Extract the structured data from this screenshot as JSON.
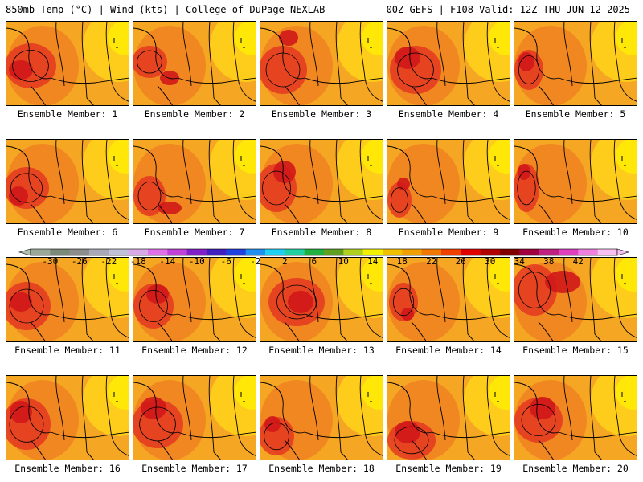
{
  "header": {
    "left": "850mb Temp (°C) | Wind (kts) | College of DuPage NEXLAB",
    "right": "00Z GEFS | F108 Valid: 12Z THU JUN 12 2025"
  },
  "panels": [
    {
      "label": "Ensemble Member: 1",
      "hot": [
        [
          30,
          55,
          32,
          28
        ],
        [
          18,
          60,
          15,
          12
        ]
      ]
    },
    {
      "label": "Ensemble Member: 2",
      "hot": [
        [
          20,
          50,
          22,
          20
        ],
        [
          45,
          70,
          12,
          9
        ]
      ]
    },
    {
      "label": "Ensemble Member: 3",
      "hot": [
        [
          28,
          60,
          30,
          30
        ],
        [
          35,
          20,
          12,
          10
        ]
      ]
    },
    {
      "label": "Ensemble Member: 4",
      "hot": [
        [
          35,
          60,
          32,
          30
        ],
        [
          25,
          45,
          16,
          14
        ]
      ]
    },
    {
      "label": "Ensemble Member: 5",
      "hot": [
        [
          18,
          60,
          18,
          25
        ],
        [
          15,
          50,
          10,
          12
        ]
      ]
    },
    {
      "label": "Ensemble Member: 6",
      "hot": [
        [
          25,
          60,
          28,
          26
        ],
        [
          15,
          70,
          12,
          12
        ]
      ]
    },
    {
      "label": "Ensemble Member: 7",
      "hot": [
        [
          20,
          70,
          20,
          25
        ],
        [
          45,
          85,
          15,
          8
        ]
      ]
    },
    {
      "label": "Ensemble Member: 8",
      "hot": [
        [
          20,
          60,
          25,
          30
        ],
        [
          30,
          40,
          14,
          14
        ]
      ]
    },
    {
      "label": "Ensemble Member: 9",
      "hot": [
        [
          15,
          75,
          15,
          22
        ],
        [
          20,
          55,
          8,
          8
        ]
      ]
    },
    {
      "label": "Ensemble Member: 10",
      "hot": [
        [
          15,
          60,
          16,
          30
        ],
        [
          12,
          40,
          8,
          10
        ]
      ]
    },
    {
      "label": "Ensemble Member: 11",
      "hot": [
        [
          25,
          60,
          30,
          30
        ],
        [
          18,
          55,
          14,
          12
        ]
      ]
    },
    {
      "label": "Ensemble Member: 12",
      "hot": [
        [
          25,
          60,
          25,
          28
        ],
        [
          30,
          45,
          14,
          12
        ]
      ]
    },
    {
      "label": "Ensemble Member: 13",
      "hot": [
        [
          45,
          55,
          35,
          30
        ],
        [
          50,
          55,
          16,
          14
        ]
      ]
    },
    {
      "label": "Ensemble Member: 14",
      "hot": [
        [
          20,
          55,
          18,
          24
        ],
        [
          25,
          70,
          8,
          8
        ]
      ]
    },
    {
      "label": "Ensemble Member: 15",
      "hot": [
        [
          25,
          40,
          28,
          32
        ],
        [
          60,
          30,
          22,
          14
        ]
      ]
    },
    {
      "label": "Ensemble Member: 16",
      "hot": [
        [
          25,
          60,
          30,
          32
        ],
        [
          18,
          45,
          14,
          14
        ]
      ]
    },
    {
      "label": "Ensemble Member: 17",
      "hot": [
        [
          30,
          60,
          32,
          30
        ],
        [
          25,
          40,
          16,
          14
        ]
      ]
    },
    {
      "label": "Ensemble Member: 18",
      "hot": [
        [
          20,
          75,
          22,
          24
        ],
        [
          15,
          60,
          10,
          10
        ]
      ]
    },
    {
      "label": "Ensemble Member: 19",
      "hot": [
        [
          30,
          80,
          30,
          24
        ],
        [
          25,
          70,
          16,
          14
        ]
      ]
    },
    {
      "label": "Ensemble Member: 20",
      "hot": [
        [
          30,
          55,
          30,
          28
        ],
        [
          35,
          40,
          16,
          14
        ]
      ]
    }
  ],
  "colorbar": {
    "ticks": [
      "-30",
      "-26",
      "-22",
      "-18",
      "-14",
      "-10",
      "-6",
      "-2",
      "2",
      "6",
      "10",
      "14",
      "18",
      "22",
      "26",
      "30",
      "34",
      "38",
      "42"
    ],
    "colors": [
      "#9aa89a",
      "#7a8a7a",
      "#8c8c8c",
      "#a8a8b8",
      "#c0c0d8",
      "#d8a8e8",
      "#e070e8",
      "#c040d8",
      "#8020c8",
      "#4020c0",
      "#2040e0",
      "#2090f0",
      "#20d0f0",
      "#20d0a0",
      "#20b040",
      "#60a020",
      "#b0d020",
      "#f0f000",
      "#f0c000",
      "#f0a000",
      "#f07800",
      "#f04000",
      "#e00000",
      "#b00000",
      "#800000",
      "#a00040",
      "#c02080",
      "#e040c0",
      "#f080e0",
      "#f8c0f0"
    ]
  },
  "colors": {
    "base": "#f5a623",
    "warm": "#f08020",
    "hot": "#e43820",
    "very_hot": "#d01818",
    "cool": "#ffd21a",
    "cooler": "#fff200",
    "contour": "#000000"
  }
}
